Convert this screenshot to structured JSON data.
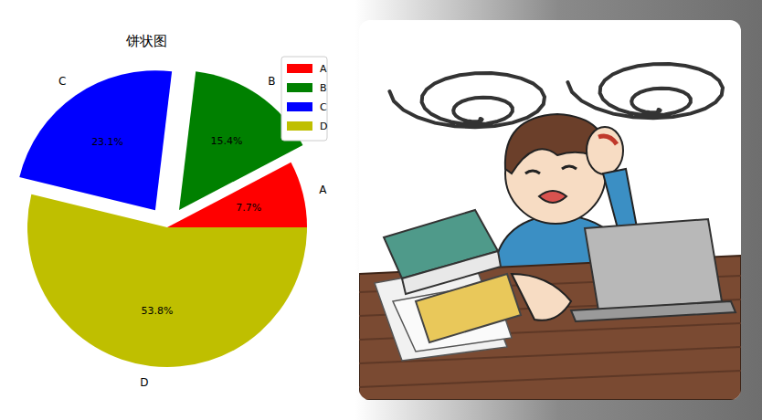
{
  "chart_data": {
    "type": "pie",
    "title": "饼状图",
    "categories": [
      "A",
      "B",
      "C",
      "D"
    ],
    "values": [
      7.7,
      15.4,
      23.1,
      53.8
    ],
    "value_labels": [
      "7.7%",
      "15.4%",
      "23.1%",
      "53.8%"
    ],
    "colors": [
      "#ff0000",
      "#008000",
      "#0000ff",
      "#bfbf00"
    ],
    "data_labels": true,
    "legend": "upper right"
  }
}
